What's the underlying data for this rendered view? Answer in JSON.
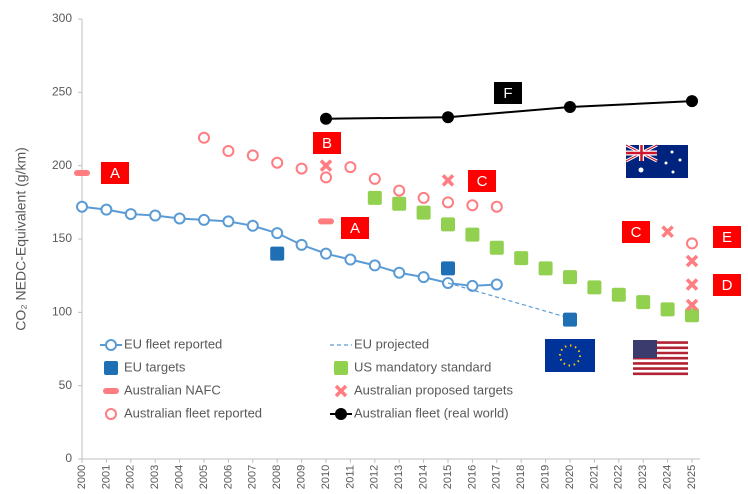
{
  "chart_data": {
    "type": "scatter",
    "y_label": "CO₂ NEDC-Equivalent (g/km)",
    "xlim": [
      2000,
      2025
    ],
    "xticks": [
      2000,
      2001,
      2002,
      2003,
      2004,
      2005,
      2006,
      2007,
      2008,
      2009,
      2010,
      2011,
      2012,
      2013,
      2014,
      2015,
      2016,
      2017,
      2018,
      2019,
      2020,
      2021,
      2022,
      2023,
      2024,
      2025
    ],
    "ylim": [
      0,
      300
    ],
    "yticks": [
      0,
      50,
      100,
      150,
      200,
      250,
      300
    ],
    "grid": false,
    "legend": "bottom-left",
    "series": [
      {
        "name": "EU fleet reported",
        "color": "#5b9bd5",
        "marker": "circle-open",
        "line": "solid",
        "x": [
          2000,
          2001,
          2002,
          2003,
          2004,
          2005,
          2006,
          2007,
          2008,
          2009,
          2010,
          2011,
          2012,
          2013,
          2014,
          2015,
          2016,
          2017
        ],
        "values": [
          172,
          170,
          167,
          166,
          164,
          163,
          162,
          159,
          154,
          146,
          140,
          136,
          132,
          127,
          124,
          120,
          118,
          119
        ]
      },
      {
        "name": "EU projected",
        "color": "#5b9bd5",
        "marker": "none",
        "line": "dashed",
        "x": [
          2015,
          2020
        ],
        "values": [
          120,
          96
        ]
      },
      {
        "name": "EU targets",
        "color": "#1f6fb5",
        "marker": "square",
        "x": [
          2008,
          2015,
          2020
        ],
        "values": [
          140,
          130,
          95
        ]
      },
      {
        "name": "US mandatory standard",
        "color": "#92d050",
        "marker": "square",
        "x": [
          2012,
          2013,
          2014,
          2015,
          2016,
          2017,
          2018,
          2019,
          2020,
          2021,
          2022,
          2023,
          2024,
          2025
        ],
        "values": [
          178,
          174,
          168,
          160,
          153,
          144,
          137,
          130,
          124,
          117,
          112,
          107,
          102,
          98
        ]
      },
      {
        "name": "Australian NAFC",
        "color": "#ff7c80",
        "marker": "dash",
        "x": [
          2000,
          2010
        ],
        "values": [
          195,
          162
        ]
      },
      {
        "name": "Australian proposed targets",
        "color": "#ff7c80",
        "marker": "cross",
        "x": [
          2010,
          2015,
          2024,
          2025,
          2025,
          2025
        ],
        "values": [
          200,
          190,
          155,
          135,
          119,
          105
        ]
      },
      {
        "name": "Australian fleet reported",
        "color": "#ff7c80",
        "marker": "circle-open",
        "x": [
          2005,
          2006,
          2007,
          2008,
          2009,
          2010,
          2011,
          2012,
          2013,
          2014,
          2015,
          2016,
          2017,
          2025
        ],
        "values": [
          219,
          210,
          207,
          202,
          198,
          192,
          199,
          191,
          183,
          178,
          175,
          173,
          172,
          147
        ]
      },
      {
        "name": "Australian fleet (real world)",
        "color": "#000000",
        "marker": "circle",
        "line": "solid",
        "x": [
          2010,
          2015,
          2020,
          2025
        ],
        "values": [
          232,
          233,
          240,
          244
        ]
      }
    ],
    "annotations": [
      "A",
      "A",
      "B",
      "C",
      "C",
      "D",
      "E",
      "F"
    ]
  }
}
